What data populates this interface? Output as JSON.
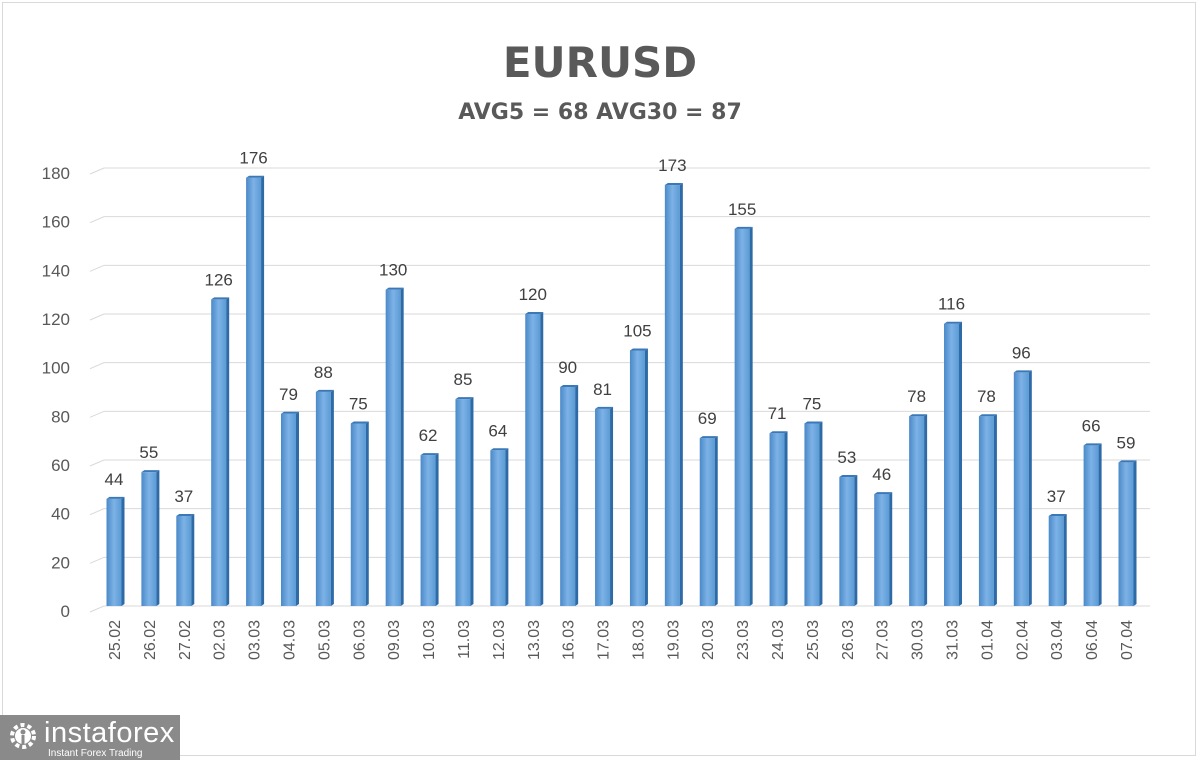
{
  "chart_data": {
    "type": "bar",
    "title": "EURUSD",
    "subtitle": "AVG5 = 68 AVG30 = 87",
    "xlabel": "",
    "ylabel": "",
    "ylim": [
      0,
      180
    ],
    "yticks": [
      0,
      20,
      40,
      60,
      80,
      100,
      120,
      140,
      160,
      180
    ],
    "grid": true,
    "legend": "none",
    "bar_color": "#5b9bd5",
    "categories": [
      "25.02",
      "26.02",
      "27.02",
      "02.03",
      "03.03",
      "04.03",
      "05.03",
      "06.03",
      "09.03",
      "10.03",
      "11.03",
      "12.03",
      "13.03",
      "16.03",
      "17.03",
      "18.03",
      "19.03",
      "20.03",
      "23.03",
      "24.03",
      "25.03",
      "26.03",
      "27.03",
      "30.03",
      "31.03",
      "01.04",
      "02.04",
      "03.04",
      "06.04",
      "07.04"
    ],
    "values": [
      44,
      55,
      37,
      126,
      176,
      79,
      88,
      75,
      130,
      62,
      85,
      64,
      120,
      90,
      81,
      105,
      173,
      69,
      155,
      71,
      75,
      53,
      46,
      78,
      116,
      78,
      96,
      37,
      66,
      59
    ],
    "data_labels": true
  },
  "logo": {
    "brand": "instaforex",
    "tagline": "Instant Forex Trading"
  }
}
